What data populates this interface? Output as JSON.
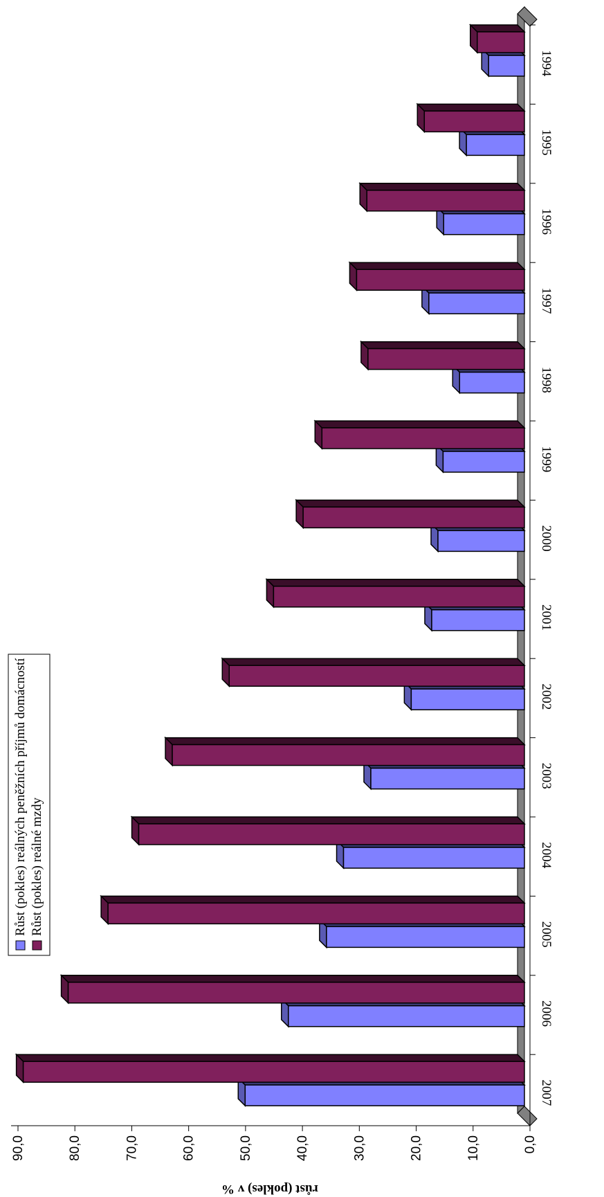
{
  "chart_data": {
    "type": "bar",
    "orientation": "rotated-90",
    "ylabel": "růst (pokles) v %",
    "ylim": [
      0,
      90
    ],
    "y_ticks": [
      "0,0",
      "10,0",
      "20,0",
      "30,0",
      "40,0",
      "50,0",
      "60,0",
      "70,0",
      "80,0",
      "90,0"
    ],
    "categories": [
      "1994",
      "1995",
      "1996",
      "1997",
      "1998",
      "1999",
      "2000",
      "2001",
      "2002",
      "2003",
      "2004",
      "2005",
      "2006",
      "2007"
    ],
    "series": [
      {
        "name": "Růst (pokles) reálných peněžních příjmů domácností",
        "color": "#8080ff",
        "values": [
          6.3,
          10.2,
          14.2,
          16.8,
          11.4,
          14.3,
          15.2,
          16.3,
          19.9,
          27.0,
          31.8,
          34.8,
          41.5,
          49.1
        ]
      },
      {
        "name": "Růst (pokles) reálné mzdy",
        "color": "#80205c",
        "values": [
          8.3,
          17.6,
          27.7,
          29.5,
          27.5,
          35.6,
          38.9,
          44.1,
          51.9,
          61.9,
          67.8,
          73.2,
          80.2,
          88.1
        ]
      }
    ],
    "legend_position": "top-left",
    "floor_color": "#808080"
  }
}
